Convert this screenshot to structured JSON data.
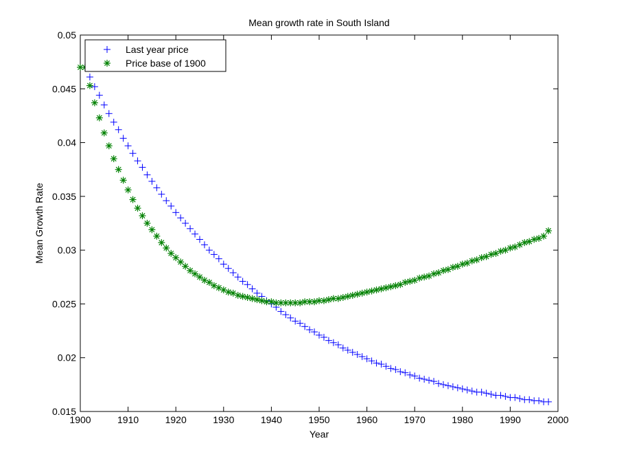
{
  "chart_data": {
    "type": "scatter",
    "title": "Mean growth rate in South Island",
    "xlabel": "Year",
    "ylabel": "Mean Growth Rate",
    "xlim": [
      1900,
      2000
    ],
    "ylim": [
      0.015,
      0.05
    ],
    "xticks": [
      1900,
      1910,
      1920,
      1930,
      1940,
      1950,
      1960,
      1970,
      1980,
      1990,
      2000
    ],
    "yticks": [
      0.015,
      0.02,
      0.025,
      0.03,
      0.035,
      0.04,
      0.045,
      0.05
    ],
    "xtick_labels": [
      "1900",
      "1910",
      "1920",
      "1930",
      "1940",
      "1950",
      "1960",
      "1970",
      "1980",
      "1990",
      "2000"
    ],
    "ytick_labels": [
      "0.015",
      "0.02",
      "0.025",
      "0.03",
      "0.035",
      "0.04",
      "0.045",
      "0.05"
    ],
    "grid": false,
    "legend_position": "top-left",
    "series": [
      {
        "name": "Last year price",
        "marker": "plus",
        "color": "#0000ff",
        "x": [
          1901,
          1902,
          1903,
          1904,
          1905,
          1906,
          1907,
          1908,
          1909,
          1910,
          1911,
          1912,
          1913,
          1914,
          1915,
          1916,
          1917,
          1918,
          1919,
          1920,
          1921,
          1922,
          1923,
          1924,
          1925,
          1926,
          1927,
          1928,
          1929,
          1930,
          1931,
          1932,
          1933,
          1934,
          1935,
          1936,
          1937,
          1938,
          1939,
          1940,
          1941,
          1942,
          1943,
          1944,
          1945,
          1946,
          1947,
          1948,
          1949,
          1950,
          1951,
          1952,
          1953,
          1954,
          1955,
          1956,
          1957,
          1958,
          1959,
          1960,
          1961,
          1962,
          1963,
          1964,
          1965,
          1966,
          1967,
          1968,
          1969,
          1970,
          1971,
          1972,
          1973,
          1974,
          1975,
          1976,
          1977,
          1978,
          1979,
          1980,
          1981,
          1982,
          1983,
          1984,
          1985,
          1986,
          1987,
          1988,
          1989,
          1990,
          1991,
          1992,
          1993,
          1994,
          1995,
          1996,
          1997,
          1998
        ],
        "y": [
          0.047,
          0.0461,
          0.0452,
          0.0444,
          0.0435,
          0.0427,
          0.0419,
          0.0412,
          0.0404,
          0.0397,
          0.039,
          0.0383,
          0.0377,
          0.037,
          0.0364,
          0.0358,
          0.0352,
          0.0346,
          0.0341,
          0.0335,
          0.033,
          0.0325,
          0.032,
          0.0315,
          0.031,
          0.0305,
          0.03,
          0.0296,
          0.0292,
          0.0287,
          0.0283,
          0.0279,
          0.0275,
          0.0271,
          0.0268,
          0.0264,
          0.026,
          0.0257,
          0.0253,
          0.025,
          0.0247,
          0.0243,
          0.024,
          0.0237,
          0.0234,
          0.0232,
          0.0229,
          0.0226,
          0.0224,
          0.0221,
          0.0219,
          0.0216,
          0.0214,
          0.0212,
          0.0209,
          0.0207,
          0.0205,
          0.0203,
          0.0201,
          0.0199,
          0.0197,
          0.0195,
          0.0194,
          0.0192,
          0.019,
          0.0189,
          0.0187,
          0.0186,
          0.0184,
          0.0183,
          0.0181,
          0.018,
          0.0179,
          0.0178,
          0.0176,
          0.0175,
          0.0174,
          0.0173,
          0.0172,
          0.0171,
          0.017,
          0.0169,
          0.0168,
          0.0168,
          0.0167,
          0.0166,
          0.0165,
          0.0165,
          0.0164,
          0.0163,
          0.0163,
          0.0162,
          0.0161,
          0.0161,
          0.016,
          0.016,
          0.0159,
          0.0159
        ]
      },
      {
        "name": "Price base of 1900",
        "marker": "star",
        "color": "#008000",
        "x": [
          1900,
          1901,
          1902,
          1903,
          1904,
          1905,
          1906,
          1907,
          1908,
          1909,
          1910,
          1911,
          1912,
          1913,
          1914,
          1915,
          1916,
          1917,
          1918,
          1919,
          1920,
          1921,
          1922,
          1923,
          1924,
          1925,
          1926,
          1927,
          1928,
          1929,
          1930,
          1931,
          1932,
          1933,
          1934,
          1935,
          1936,
          1937,
          1938,
          1939,
          1940,
          1941,
          1942,
          1943,
          1944,
          1945,
          1946,
          1947,
          1948,
          1949,
          1950,
          1951,
          1952,
          1953,
          1954,
          1955,
          1956,
          1957,
          1958,
          1959,
          1960,
          1961,
          1962,
          1963,
          1964,
          1965,
          1966,
          1967,
          1968,
          1969,
          1970,
          1971,
          1972,
          1973,
          1974,
          1975,
          1976,
          1977,
          1978,
          1979,
          1980,
          1981,
          1982,
          1983,
          1984,
          1985,
          1986,
          1987,
          1988,
          1989,
          1990,
          1991,
          1992,
          1993,
          1994,
          1995,
          1996,
          1997,
          1998
        ],
        "y": [
          0.047,
          0.047,
          0.0453,
          0.0437,
          0.0423,
          0.0409,
          0.0397,
          0.0385,
          0.0375,
          0.0365,
          0.0356,
          0.0347,
          0.0339,
          0.0332,
          0.0325,
          0.0319,
          0.0313,
          0.0307,
          0.0302,
          0.0297,
          0.0293,
          0.0289,
          0.0285,
          0.0281,
          0.0278,
          0.0275,
          0.0272,
          0.027,
          0.0267,
          0.0265,
          0.0263,
          0.0261,
          0.026,
          0.0258,
          0.0257,
          0.0256,
          0.0255,
          0.0254,
          0.0253,
          0.0252,
          0.0252,
          0.0251,
          0.0251,
          0.0251,
          0.0251,
          0.0251,
          0.0251,
          0.0252,
          0.0252,
          0.0252,
          0.0253,
          0.0253,
          0.0254,
          0.0255,
          0.0255,
          0.0256,
          0.0257,
          0.0258,
          0.0259,
          0.026,
          0.0261,
          0.0262,
          0.0263,
          0.0264,
          0.0265,
          0.0266,
          0.0267,
          0.0268,
          0.027,
          0.0271,
          0.0272,
          0.0274,
          0.0275,
          0.0276,
          0.0278,
          0.0279,
          0.0281,
          0.0282,
          0.0284,
          0.0285,
          0.0287,
          0.0288,
          0.029,
          0.0291,
          0.0293,
          0.0294,
          0.0296,
          0.0297,
          0.0299,
          0.03,
          0.0302,
          0.0303,
          0.0305,
          0.0307,
          0.0308,
          0.031,
          0.0311,
          0.0313,
          0.0318
        ]
      }
    ]
  }
}
